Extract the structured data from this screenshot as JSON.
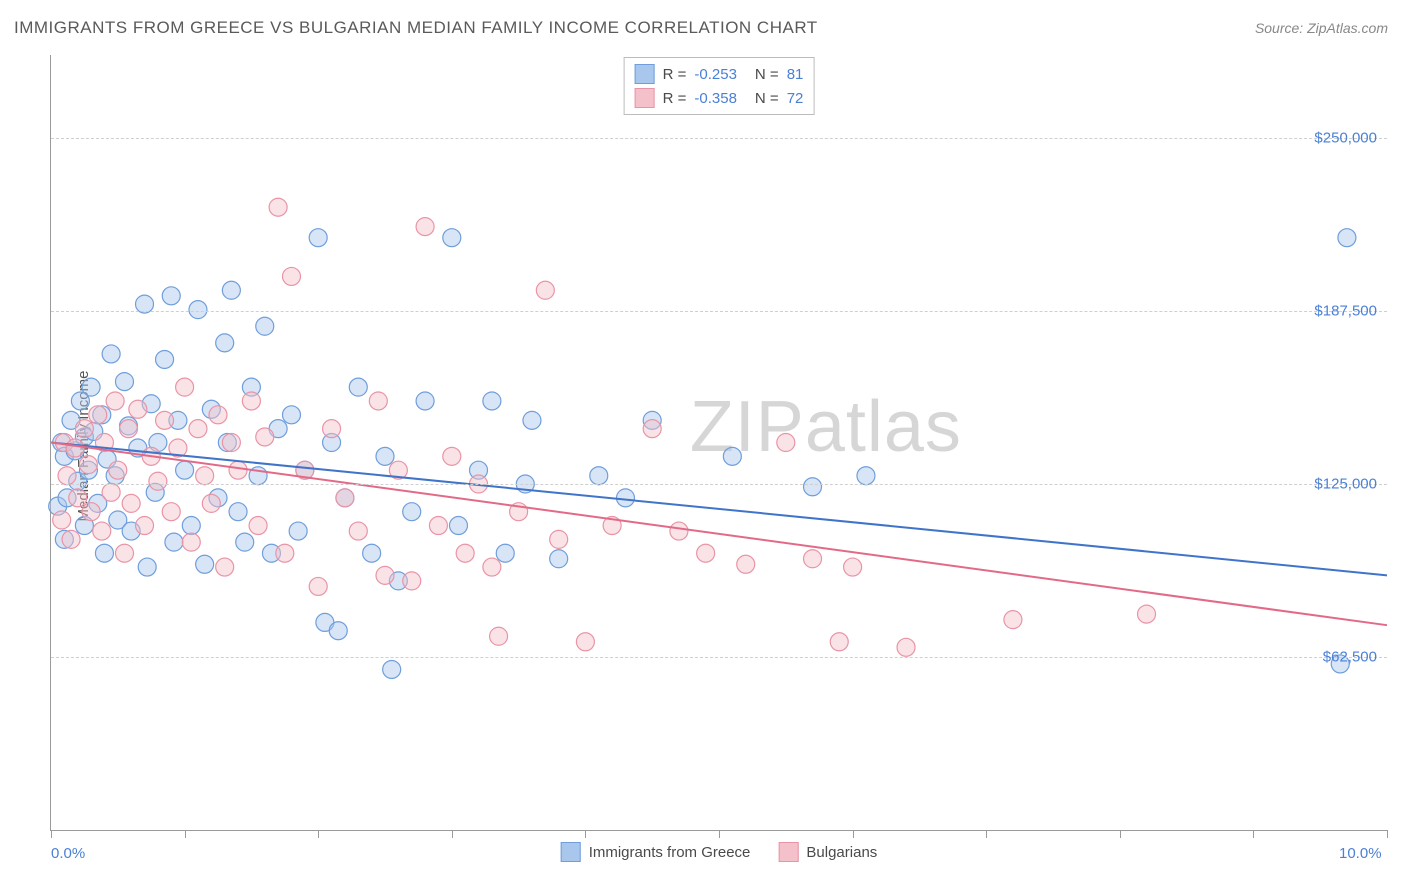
{
  "title": "IMMIGRANTS FROM GREECE VS BULGARIAN MEDIAN FAMILY INCOME CORRELATION CHART",
  "source_label": "Source:",
  "source_value": "ZipAtlas.com",
  "y_axis_label": "Median Family Income",
  "watermark": "ZIPatlas",
  "chart": {
    "type": "scatter",
    "xlim": [
      0,
      10
    ],
    "ylim": [
      0,
      280000
    ],
    "x_tick_positions": [
      0,
      1,
      2,
      3,
      4,
      5,
      6,
      7,
      8,
      9,
      10
    ],
    "x_tick_labels_shown": {
      "0": "0.0%",
      "10": "10.0%"
    },
    "y_gridlines": [
      62500,
      125000,
      187500,
      250000
    ],
    "y_tick_labels": [
      "$62,500",
      "$125,000",
      "$187,500",
      "$250,000"
    ],
    "grid_color": "#cfcfcf",
    "axis_color": "#9a9a9a",
    "tick_label_color": "#4a80d6",
    "background_color": "#ffffff",
    "marker_radius": 9,
    "marker_fill_opacity": 0.45,
    "marker_stroke_width": 1.2,
    "regression_line_width": 2,
    "series": [
      {
        "name": "Immigrants from Greece",
        "color_fill": "#a9c6ec",
        "color_stroke": "#6f9edb",
        "line_color": "#3f74c9",
        "R": "-0.253",
        "N": "81",
        "regression": {
          "x1": 0,
          "y1": 140000,
          "x2": 10,
          "y2": 92000
        },
        "points": [
          [
            0.05,
            117000
          ],
          [
            0.08,
            140000
          ],
          [
            0.1,
            105000
          ],
          [
            0.1,
            135000
          ],
          [
            0.12,
            120000
          ],
          [
            0.15,
            148000
          ],
          [
            0.18,
            137000
          ],
          [
            0.2,
            126000
          ],
          [
            0.22,
            155000
          ],
          [
            0.25,
            142000
          ],
          [
            0.25,
            110000
          ],
          [
            0.28,
            130000
          ],
          [
            0.3,
            160000
          ],
          [
            0.32,
            144000
          ],
          [
            0.35,
            118000
          ],
          [
            0.38,
            150000
          ],
          [
            0.4,
            100000
          ],
          [
            0.42,
            134000
          ],
          [
            0.45,
            172000
          ],
          [
            0.48,
            128000
          ],
          [
            0.5,
            112000
          ],
          [
            0.55,
            162000
          ],
          [
            0.58,
            146000
          ],
          [
            0.6,
            108000
          ],
          [
            0.65,
            138000
          ],
          [
            0.7,
            190000
          ],
          [
            0.72,
            95000
          ],
          [
            0.75,
            154000
          ],
          [
            0.78,
            122000
          ],
          [
            0.8,
            140000
          ],
          [
            0.85,
            170000
          ],
          [
            0.9,
            193000
          ],
          [
            0.92,
            104000
          ],
          [
            0.95,
            148000
          ],
          [
            1.0,
            130000
          ],
          [
            1.05,
            110000
          ],
          [
            1.1,
            188000
          ],
          [
            1.15,
            96000
          ],
          [
            1.2,
            152000
          ],
          [
            1.25,
            120000
          ],
          [
            1.3,
            176000
          ],
          [
            1.32,
            140000
          ],
          [
            1.35,
            195000
          ],
          [
            1.4,
            115000
          ],
          [
            1.45,
            104000
          ],
          [
            1.5,
            160000
          ],
          [
            1.55,
            128000
          ],
          [
            1.6,
            182000
          ],
          [
            1.65,
            100000
          ],
          [
            1.7,
            145000
          ],
          [
            1.8,
            150000
          ],
          [
            1.85,
            108000
          ],
          [
            1.9,
            130000
          ],
          [
            2.0,
            214000
          ],
          [
            2.05,
            75000
          ],
          [
            2.1,
            140000
          ],
          [
            2.15,
            72000
          ],
          [
            2.2,
            120000
          ],
          [
            2.3,
            160000
          ],
          [
            2.4,
            100000
          ],
          [
            2.5,
            135000
          ],
          [
            2.55,
            58000
          ],
          [
            2.6,
            90000
          ],
          [
            2.7,
            115000
          ],
          [
            2.8,
            155000
          ],
          [
            3.0,
            214000
          ],
          [
            3.05,
            110000
          ],
          [
            3.2,
            130000
          ],
          [
            3.3,
            155000
          ],
          [
            3.4,
            100000
          ],
          [
            3.55,
            125000
          ],
          [
            3.6,
            148000
          ],
          [
            3.8,
            98000
          ],
          [
            4.1,
            128000
          ],
          [
            4.3,
            120000
          ],
          [
            4.5,
            148000
          ],
          [
            5.1,
            135000
          ],
          [
            5.7,
            124000
          ],
          [
            6.1,
            128000
          ],
          [
            9.65,
            60000
          ],
          [
            9.7,
            214000
          ]
        ]
      },
      {
        "name": "Bulgarians",
        "color_fill": "#f4c0ca",
        "color_stroke": "#e994a6",
        "line_color": "#e26a87",
        "R": "-0.358",
        "N": "72",
        "regression": {
          "x1": 0,
          "y1": 140000,
          "x2": 10,
          "y2": 74000
        },
        "points": [
          [
            0.08,
            112000
          ],
          [
            0.1,
            140000
          ],
          [
            0.12,
            128000
          ],
          [
            0.15,
            105000
          ],
          [
            0.18,
            138000
          ],
          [
            0.2,
            120000
          ],
          [
            0.25,
            145000
          ],
          [
            0.28,
            132000
          ],
          [
            0.3,
            115000
          ],
          [
            0.35,
            150000
          ],
          [
            0.38,
            108000
          ],
          [
            0.4,
            140000
          ],
          [
            0.45,
            122000
          ],
          [
            0.48,
            155000
          ],
          [
            0.5,
            130000
          ],
          [
            0.55,
            100000
          ],
          [
            0.58,
            145000
          ],
          [
            0.6,
            118000
          ],
          [
            0.65,
            152000
          ],
          [
            0.7,
            110000
          ],
          [
            0.75,
            135000
          ],
          [
            0.8,
            126000
          ],
          [
            0.85,
            148000
          ],
          [
            0.9,
            115000
          ],
          [
            0.95,
            138000
          ],
          [
            1.0,
            160000
          ],
          [
            1.05,
            104000
          ],
          [
            1.1,
            145000
          ],
          [
            1.15,
            128000
          ],
          [
            1.2,
            118000
          ],
          [
            1.25,
            150000
          ],
          [
            1.3,
            95000
          ],
          [
            1.35,
            140000
          ],
          [
            1.4,
            130000
          ],
          [
            1.5,
            155000
          ],
          [
            1.55,
            110000
          ],
          [
            1.6,
            142000
          ],
          [
            1.7,
            225000
          ],
          [
            1.75,
            100000
          ],
          [
            1.8,
            200000
          ],
          [
            1.9,
            130000
          ],
          [
            2.0,
            88000
          ],
          [
            2.1,
            145000
          ],
          [
            2.2,
            120000
          ],
          [
            2.3,
            108000
          ],
          [
            2.45,
            155000
          ],
          [
            2.5,
            92000
          ],
          [
            2.6,
            130000
          ],
          [
            2.7,
            90000
          ],
          [
            2.8,
            218000
          ],
          [
            2.9,
            110000
          ],
          [
            3.0,
            135000
          ],
          [
            3.1,
            100000
          ],
          [
            3.2,
            125000
          ],
          [
            3.3,
            95000
          ],
          [
            3.35,
            70000
          ],
          [
            3.5,
            115000
          ],
          [
            3.7,
            195000
          ],
          [
            3.8,
            105000
          ],
          [
            4.0,
            68000
          ],
          [
            4.2,
            110000
          ],
          [
            4.5,
            145000
          ],
          [
            4.7,
            108000
          ],
          [
            4.9,
            100000
          ],
          [
            5.2,
            96000
          ],
          [
            5.5,
            140000
          ],
          [
            5.7,
            98000
          ],
          [
            5.9,
            68000
          ],
          [
            6.0,
            95000
          ],
          [
            6.4,
            66000
          ],
          [
            7.2,
            76000
          ],
          [
            8.2,
            78000
          ]
        ]
      }
    ],
    "legend_top": {
      "R_label": "R =",
      "N_label": "N ="
    },
    "legend_bottom_labels": [
      "Immigrants from Greece",
      "Bulgarians"
    ]
  }
}
